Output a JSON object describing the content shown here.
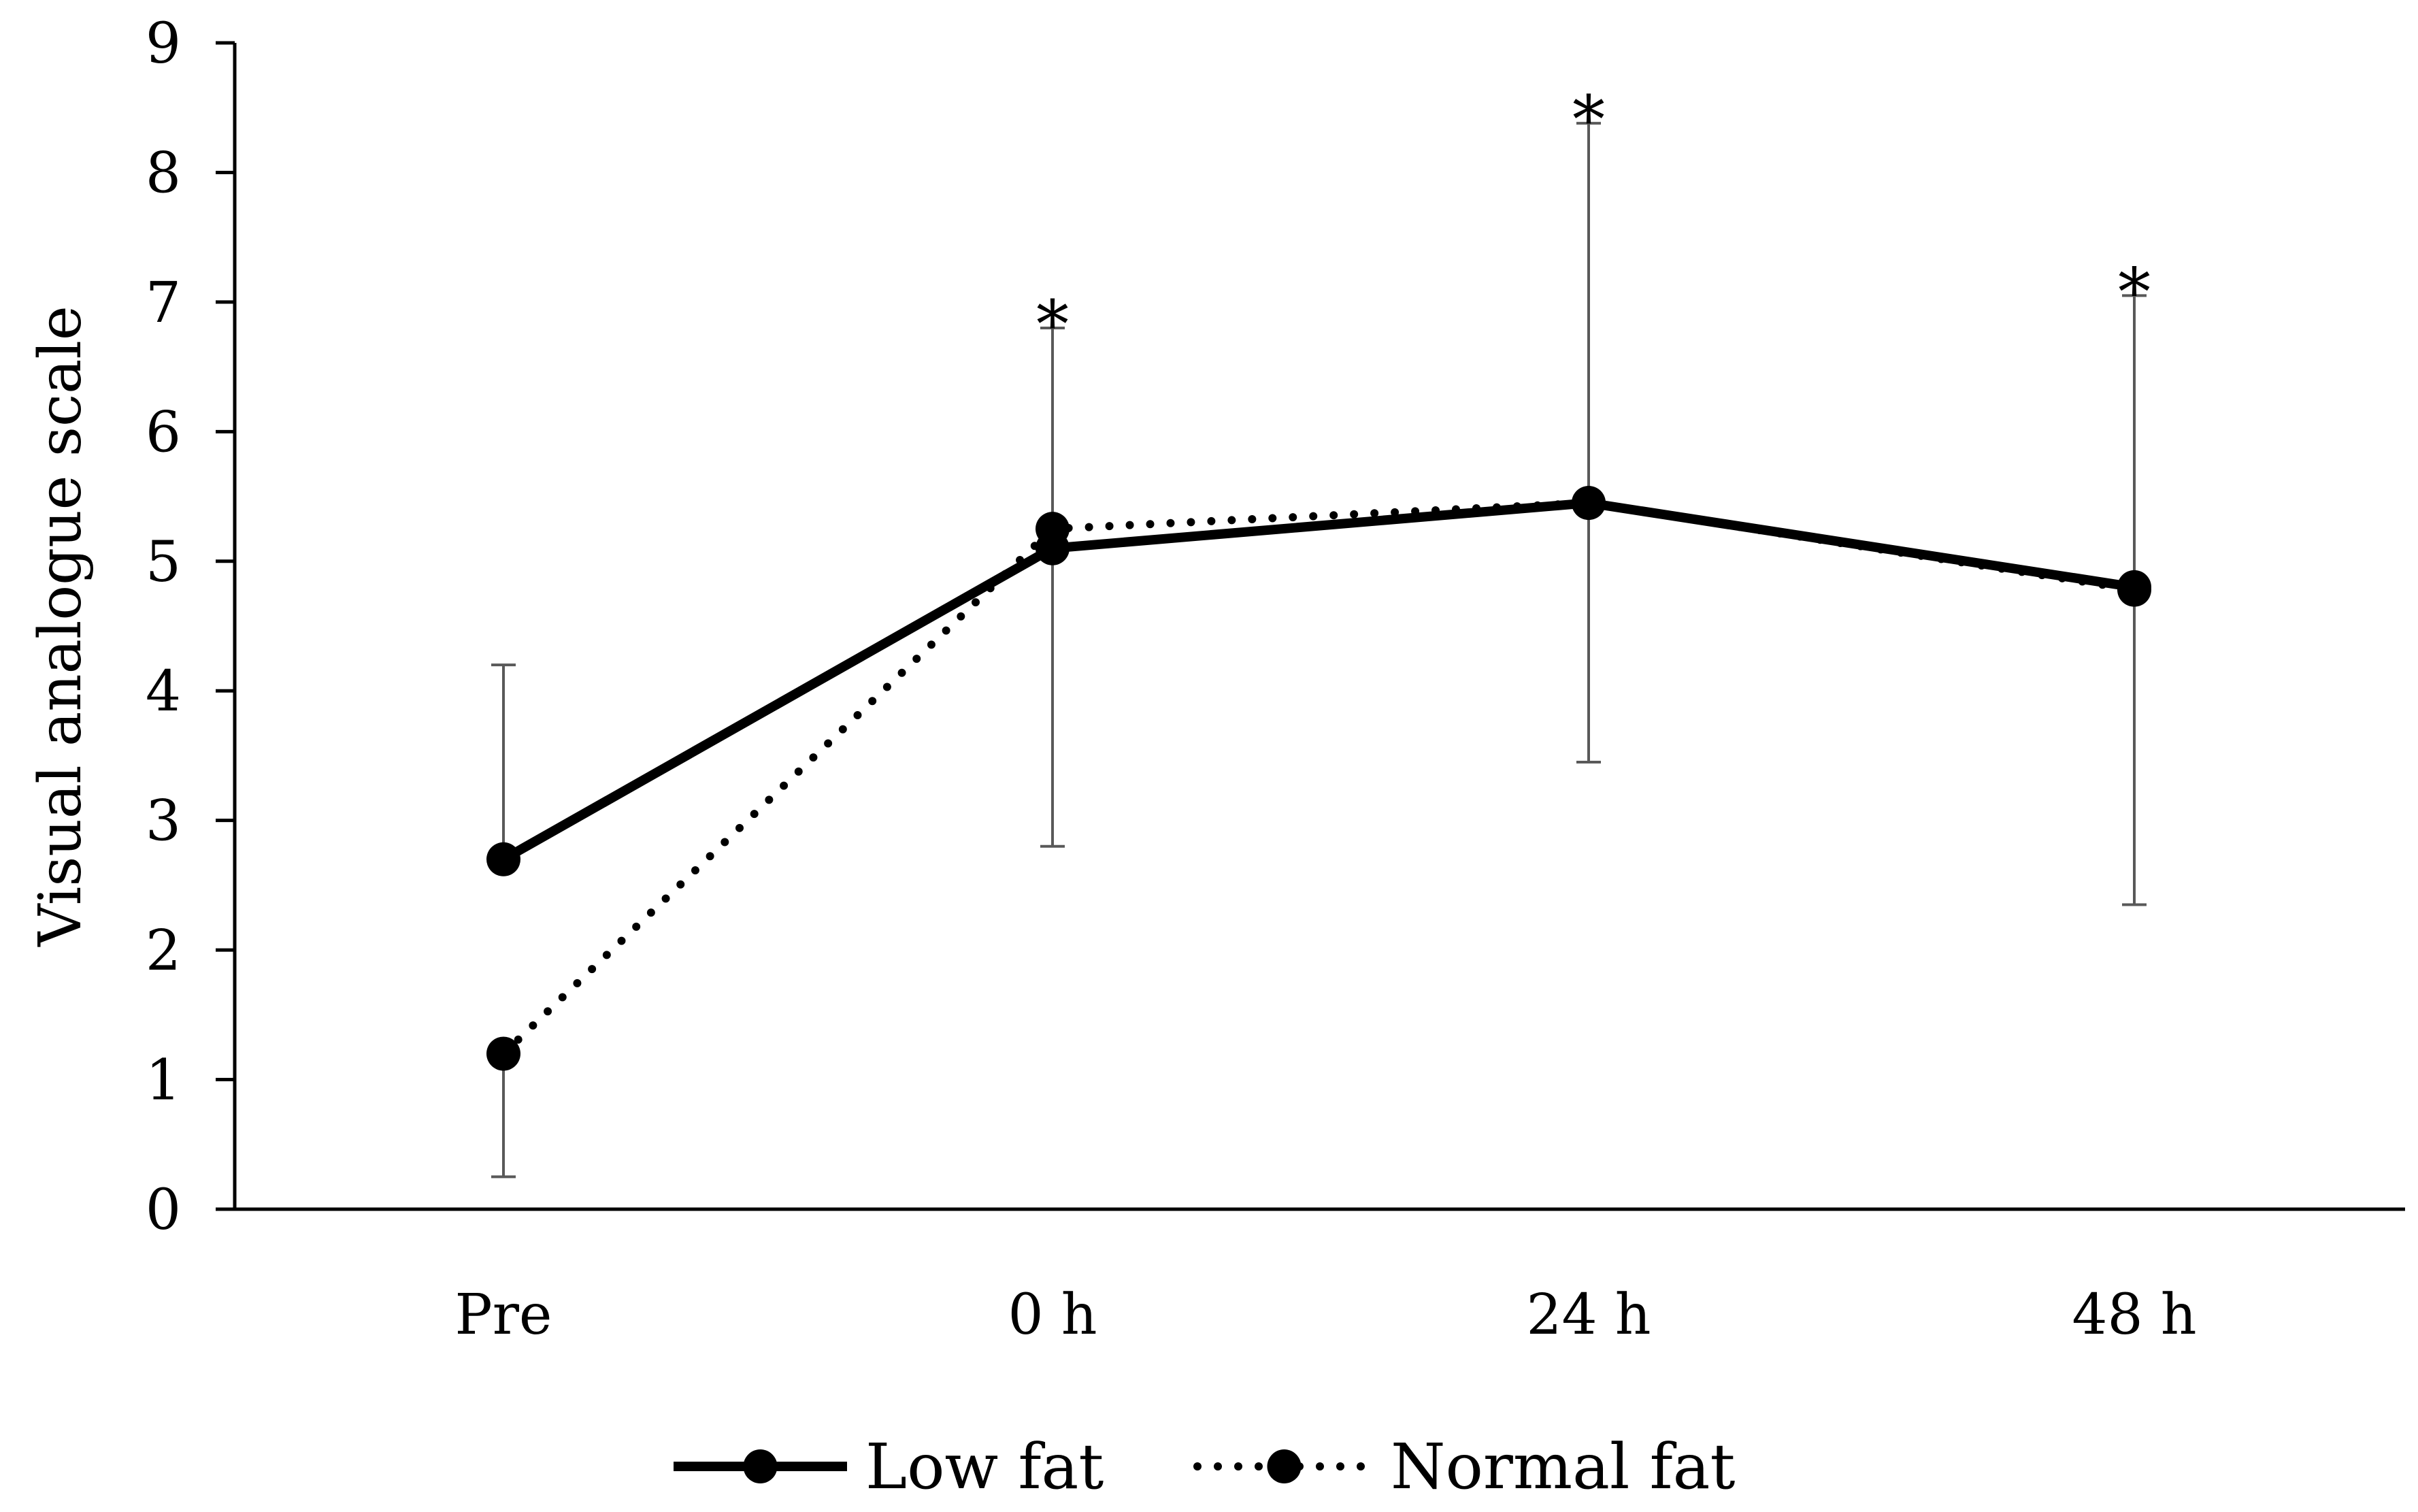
{
  "chart_data": {
    "type": "line",
    "title": "",
    "xlabel": "",
    "ylabel": "Visual analogue scale",
    "categories": [
      "Pre",
      "0 h",
      "24 h",
      "48 h"
    ],
    "ylim": [
      0,
      9
    ],
    "yticks": [
      "0",
      "1",
      "2",
      "3",
      "4",
      "5",
      "6",
      "7",
      "8",
      "9"
    ],
    "grid": false,
    "legend_position": "bottom",
    "series": [
      {
        "name": "Low fat",
        "line_style": "solid",
        "color": "#000000",
        "values": [
          2.7,
          5.1,
          5.45,
          4.8
        ],
        "error_upper": [
          4.2,
          6.8,
          8.38,
          7.05
        ],
        "error_lower": [
          null,
          2.8,
          3.45,
          2.35
        ]
      },
      {
        "name": "Normal fat",
        "line_style": "dotted",
        "color": "#000000",
        "values": [
          1.2,
          5.25,
          5.45,
          4.78
        ],
        "error_upper": [
          null,
          null,
          null,
          null
        ],
        "error_lower": [
          0.25,
          null,
          null,
          null
        ]
      }
    ],
    "annotations": [
      {
        "category": "0 h",
        "text": "*",
        "y": 6.8
      },
      {
        "category": "24 h",
        "text": "*",
        "y": 8.38
      },
      {
        "category": "48 h",
        "text": "*",
        "y": 7.05
      }
    ]
  }
}
